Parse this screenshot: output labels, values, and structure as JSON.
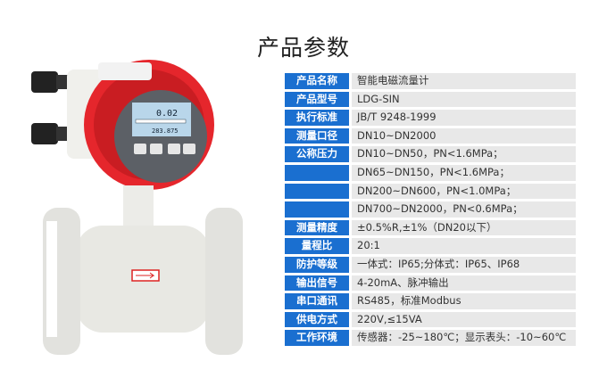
{
  "title": "产品参数",
  "colors": {
    "label_bg": "#1a6fd0",
    "value_bg": "#e8e8e8",
    "housing": "#e5262c"
  },
  "display": {
    "reading": "0.02",
    "total": "283.875"
  },
  "specs": [
    {
      "label": "产品名称",
      "value": "智能电磁流量计"
    },
    {
      "label": "产品型号",
      "value": "LDG-SIN"
    },
    {
      "label": "执行标准",
      "value": "JB/T 9248-1999"
    },
    {
      "label": "测量口径",
      "value": "DN10~DN2000"
    },
    {
      "label": "公称压力",
      "value": "DN10~DN50，PN<1.6MPa；"
    },
    {
      "label": "",
      "value": "DN65~DN150，PN<1.6MPa；"
    },
    {
      "label": "",
      "value": "DN200~DN600，PN<1.0MPa；"
    },
    {
      "label": "",
      "value": "DN700~DN2000，PN<0.6MPa；"
    },
    {
      "label": "测量精度",
      "value": "±0.5%R,±1%（DN20以下）"
    },
    {
      "label": "量程比",
      "value": "20:1"
    },
    {
      "label": "防护等级",
      "value": "一体式：IP65;分体式：IP65、IP68"
    },
    {
      "label": "输出信号",
      "value": "4-20mA、脉冲输出"
    },
    {
      "label": "串口通讯",
      "value": "RS485，标准Modbus"
    },
    {
      "label": "供电方式",
      "value": "220V,≤15VA"
    },
    {
      "label": "工作环境",
      "value": "传感器：-25~180℃；显示表头：-10~60℃"
    }
  ]
}
